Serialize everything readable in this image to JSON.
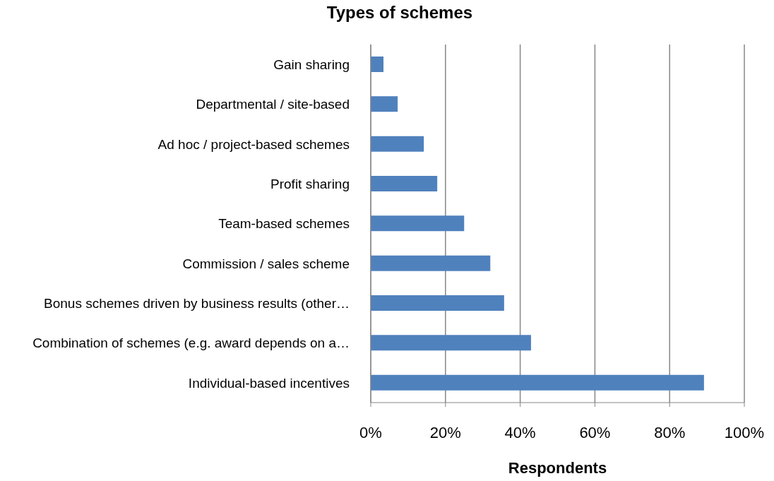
{
  "chart_data": {
    "type": "bar",
    "orientation": "horizontal",
    "title": "Types of schemes",
    "xlabel": "Respondents",
    "categories": [
      "Gain sharing",
      "Departmental / site-based",
      "Ad hoc / project-based schemes",
      "Profit sharing",
      "Team-based schemes",
      "Commission / sales scheme",
      "Bonus schemes driven by business results (other…",
      "Combination of schemes (e.g. award depends on a…",
      "Individual-based incentives"
    ],
    "values": [
      3.4,
      7.2,
      14.2,
      17.8,
      25,
      32,
      35.7,
      42.9,
      89.2
    ],
    "color": "#4f81bd",
    "xlim": [
      0,
      100
    ],
    "xticks": [
      {
        "value": 0,
        "label": "0%"
      },
      {
        "value": 20,
        "label": "20%"
      },
      {
        "value": 40,
        "label": "40%"
      },
      {
        "value": 60,
        "label": "60%"
      },
      {
        "value": 80,
        "label": "80%"
      },
      {
        "value": 100,
        "label": "100%"
      }
    ],
    "grid": "x",
    "legend": false
  }
}
